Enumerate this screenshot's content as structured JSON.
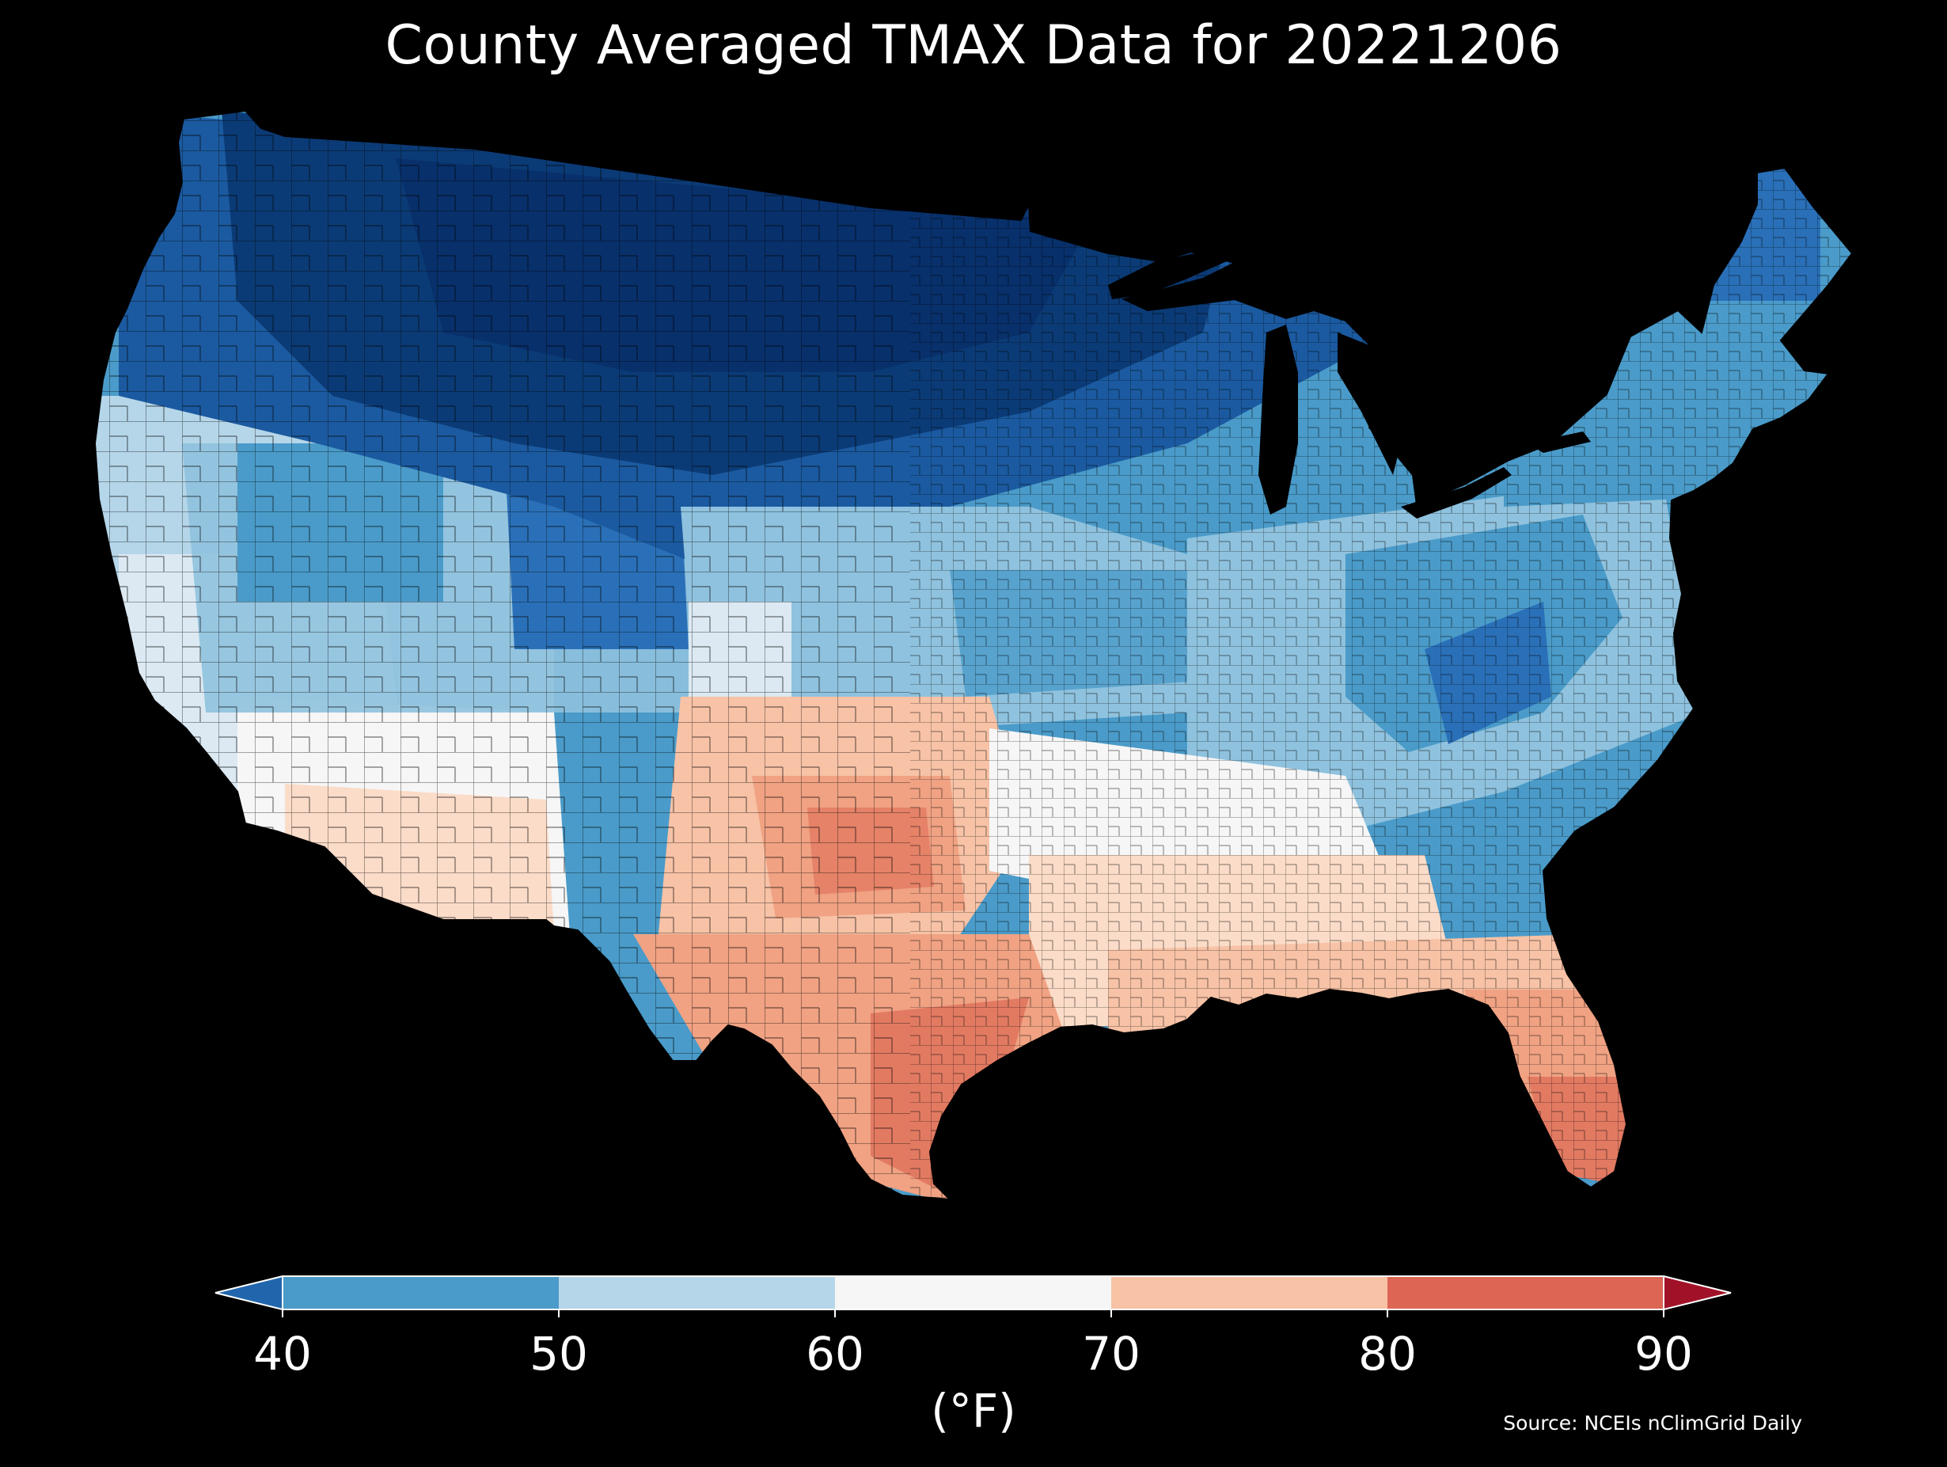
{
  "title": "County Averaged TMAX Data for 20221206",
  "units": "(°F)",
  "source": "Source: NCEIs nClimGrid Daily",
  "colorbar": {
    "ticks": [
      "40",
      "50",
      "60",
      "70",
      "80",
      "90"
    ],
    "bins": [
      {
        "range": "<40",
        "color": "#2166ac"
      },
      {
        "range": "40-50",
        "color": "#4a9bc9"
      },
      {
        "range": "50-60",
        "color": "#b5d6e9"
      },
      {
        "range": "60-70",
        "color": "#f6f6f6"
      },
      {
        "range": "70-80",
        "color": "#f7c2a6"
      },
      {
        "range": "80-90",
        "color": "#dc6553"
      },
      {
        "range": ">90",
        "color": "#a11228"
      }
    ]
  },
  "map": {
    "region": "Contiguous United States",
    "unit_level": "county",
    "variable": "TMAX",
    "palette": [
      "#08306b",
      "#0b3b76",
      "#1b5aa0",
      "#2a70b8",
      "#4a9bc9",
      "#8fc2de",
      "#b5d6e9",
      "#dce9f2",
      "#f6f6f6",
      "#fbdcc8",
      "#f7c2a6",
      "#f0a283",
      "#e27a62",
      "#dc6553"
    ]
  }
}
